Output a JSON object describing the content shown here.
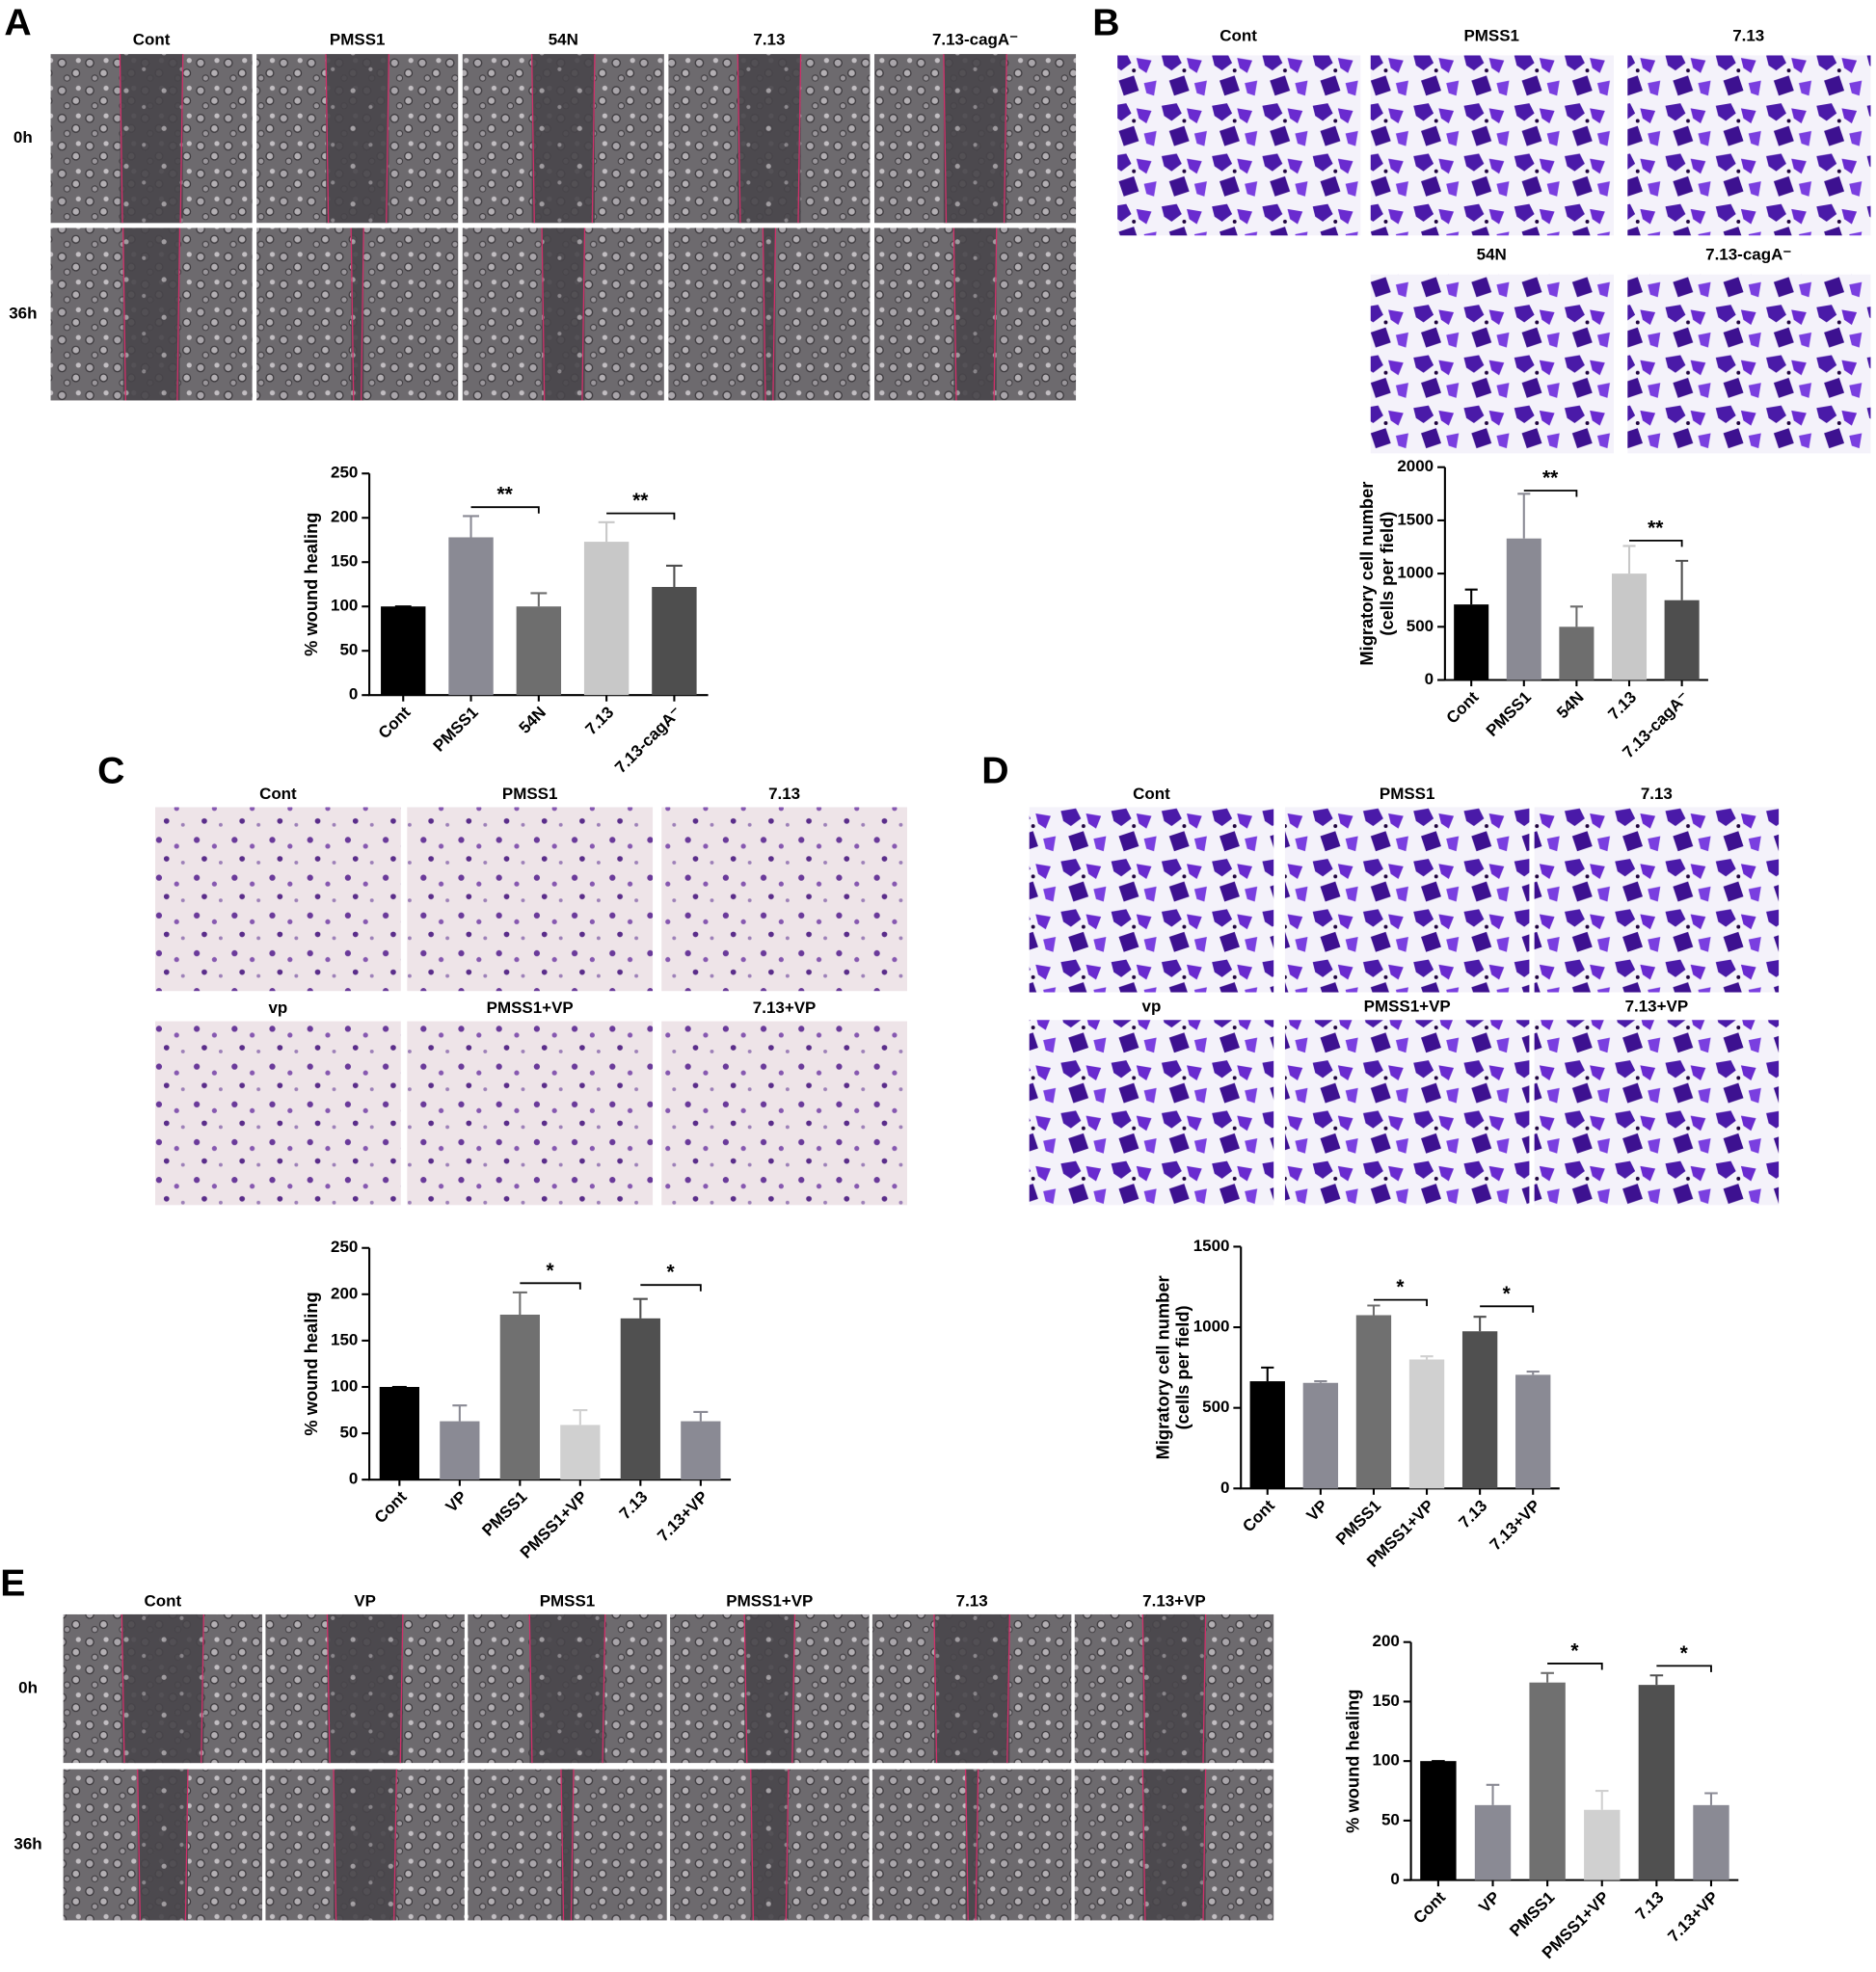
{
  "panels": [
    {
      "letter": "A",
      "columns": [
        "Cont",
        "PMSS1",
        "54N",
        "7.13",
        "7.13-cagA⁻"
      ],
      "rows": [
        "0h",
        "36h"
      ]
    },
    {
      "letter": "B",
      "columns": [
        "Cont",
        "PMSS1",
        "7.13",
        "54N",
        "7.13-cagA⁻"
      ]
    },
    {
      "letter": "C",
      "columns": [
        "Cont",
        "PMSS1",
        "7.13",
        "vp",
        "PMSS1+VP",
        "7.13+VP"
      ]
    },
    {
      "letter": "D",
      "columns": [
        "Cont",
        "PMSS1",
        "7.13",
        "vp",
        "PMSS1+VP",
        "7.13+VP"
      ]
    },
    {
      "letter": "E",
      "columns": [
        "Cont",
        "VP",
        "PMSS1",
        "PMSS1+VP",
        "7.13",
        "7.13+VP"
      ],
      "rows": [
        "0h",
        "36h"
      ]
    }
  ],
  "chart_data": [
    {
      "type": "bar",
      "ylabel": "% wound healing",
      "categories": [
        "Cont",
        "PMSS1",
        "54N",
        "7.13",
        "7.13-cagA⁻"
      ],
      "values": [
        100,
        178,
        100,
        173,
        122
      ],
      "errors": [
        0,
        24,
        15,
        22,
        24
      ],
      "colors": [
        "#000000",
        "#8a8a94",
        "#6e6e6e",
        "#c8c8c8",
        "#4e4e4e"
      ],
      "ylim": [
        0,
        250
      ],
      "yticks": [
        0,
        50,
        100,
        150,
        200,
        250
      ],
      "annotations": [
        {
          "from": "PMSS1",
          "to": "54N",
          "y": 212,
          "label": "**"
        },
        {
          "from": "7.13",
          "to": "7.13-cagA⁻",
          "y": 205,
          "label": "**"
        }
      ]
    },
    {
      "type": "bar",
      "ylabel": [
        "Migratory cell number",
        "(cells per field)"
      ],
      "categories": [
        "Cont",
        "PMSS1",
        "54N",
        "7.13",
        "7.13-cagA⁻"
      ],
      "values": [
        710,
        1330,
        500,
        1000,
        750
      ],
      "errors": [
        140,
        420,
        190,
        260,
        370
      ],
      "colors": [
        "#000000",
        "#8a8a94",
        "#6e6e6e",
        "#c8c8c8",
        "#4e4e4e"
      ],
      "ylim": [
        0,
        2000
      ],
      "yticks": [
        0,
        500,
        1000,
        1500,
        2000
      ],
      "annotations": [
        {
          "from": "PMSS1",
          "to": "54N",
          "y": 1780,
          "label": "**"
        },
        {
          "from": "7.13",
          "to": "7.13-cagA⁻",
          "y": 1310,
          "label": "**"
        }
      ]
    },
    {
      "type": "bar",
      "ylabel": "% wound healing",
      "categories": [
        "Cont",
        "VP",
        "PMSS1",
        "PMSS1+VP",
        "7.13",
        "7.13+VP"
      ],
      "values": [
        100,
        63,
        178,
        59,
        174,
        63
      ],
      "errors": [
        0,
        17,
        24,
        16,
        21,
        10
      ],
      "colors": [
        "#000000",
        "#8a8a94",
        "#707070",
        "#d0d0d0",
        "#505050",
        "#8a8a94"
      ],
      "ylim": [
        0,
        250
      ],
      "yticks": [
        0,
        50,
        100,
        150,
        200,
        250
      ],
      "annotations": [
        {
          "from": "PMSS1",
          "to": "PMSS1+VP",
          "y": 212,
          "label": "*"
        },
        {
          "from": "7.13",
          "to": "7.13+VP",
          "y": 210,
          "label": "*"
        }
      ]
    },
    {
      "type": "bar",
      "ylabel": [
        "Migratory cell number",
        "(cells per field)"
      ],
      "categories": [
        "Cont",
        "VP",
        "PMSS1",
        "PMSS1+VP",
        "7.13",
        "7.13+VP"
      ],
      "values": [
        665,
        655,
        1075,
        800,
        975,
        705
      ],
      "errors": [
        85,
        10,
        60,
        20,
        90,
        20
      ],
      "colors": [
        "#000000",
        "#8a8a94",
        "#707070",
        "#d0d0d0",
        "#505050",
        "#8a8a94"
      ],
      "ylim": [
        0,
        1500
      ],
      "yticks": [
        0,
        500,
        1000,
        1500
      ],
      "annotations": [
        {
          "from": "PMSS1",
          "to": "PMSS1+VP",
          "y": 1170,
          "label": "*"
        },
        {
          "from": "7.13",
          "to": "7.13+VP",
          "y": 1130,
          "label": "*"
        }
      ]
    },
    {
      "type": "bar",
      "ylabel": "% wound healing",
      "categories": [
        "Cont",
        "VP",
        "PMSS1",
        "PMSS1+VP",
        "7.13",
        "7.13+VP"
      ],
      "values": [
        100,
        63,
        166,
        59,
        164,
        63
      ],
      "errors": [
        0,
        17,
        8,
        16,
        8,
        10
      ],
      "colors": [
        "#000000",
        "#8a8a94",
        "#707070",
        "#d0d0d0",
        "#505050",
        "#8a8a94"
      ],
      "ylim": [
        0,
        200
      ],
      "yticks": [
        0,
        50,
        100,
        150,
        200
      ],
      "annotations": [
        {
          "from": "PMSS1",
          "to": "PMSS1+VP",
          "y": 182,
          "label": "*"
        },
        {
          "from": "7.13",
          "to": "7.13+VP",
          "y": 180,
          "label": "*"
        }
      ]
    }
  ]
}
